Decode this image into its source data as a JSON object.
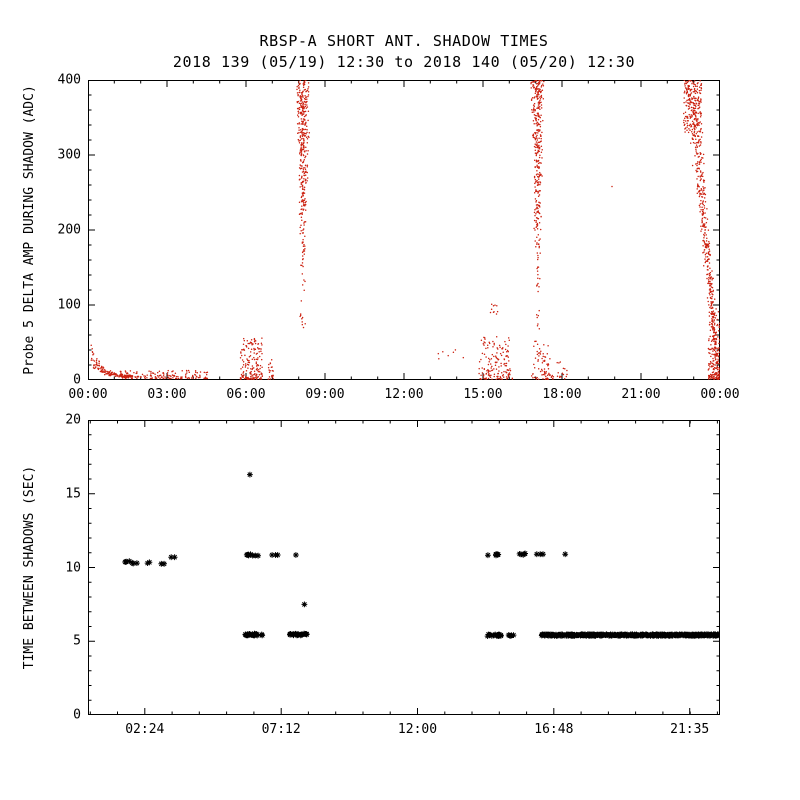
{
  "page": {
    "background": "#ffffff",
    "axis_color": "#000000"
  },
  "header": {
    "title": "RBSP-A SHORT ANT. SHADOW TIMES",
    "subtitle": "2018 139 (05/19) 12:30 to 2018 140 (05/20) 12:30"
  },
  "chart_data": [
    {
      "panel": "top",
      "type": "scatter",
      "title": "RBSP-A SHORT ANT. SHADOW TIMES",
      "subtitle": "2018 139 (05/19) 12:30 to 2018 140 (05/20) 12:30",
      "xlabel": "",
      "ylabel": "Probe 5 DELTA AMP DURING SHADOW (ADC)",
      "xlim": [
        0,
        24
      ],
      "ylim": [
        0,
        400
      ],
      "x_ticks": [
        {
          "v": 0,
          "label": "00:00"
        },
        {
          "v": 3,
          "label": "03:00"
        },
        {
          "v": 6,
          "label": "06:00"
        },
        {
          "v": 9,
          "label": "09:00"
        },
        {
          "v": 12,
          "label": "12:00"
        },
        {
          "v": 15,
          "label": "15:00"
        },
        {
          "v": 18,
          "label": "18:00"
        },
        {
          "v": 21,
          "label": "21:00"
        },
        {
          "v": 24,
          "label": "00:00"
        }
      ],
      "x_minor": 1,
      "y_ticks": [
        {
          "v": 0,
          "label": "0"
        },
        {
          "v": 100,
          "label": "100"
        },
        {
          "v": 200,
          "label": "200"
        },
        {
          "v": 300,
          "label": "300"
        },
        {
          "v": 400,
          "label": "400"
        }
      ],
      "y_minor": 20,
      "marker": "dot",
      "color": "#cc2211",
      "grid": false,
      "clusters": [
        {
          "name": "early-decay",
          "shape": "decay",
          "x": [
            0.12,
            1.7
          ],
          "base": 4,
          "amp": 36,
          "tau": 0.4,
          "n": 170
        },
        {
          "name": "early-tail",
          "shape": "low",
          "x": [
            1.2,
            4.55
          ],
          "y": [
            2,
            13
          ],
          "bias": 2.2,
          "n": 150
        },
        {
          "name": "dawn-cluster",
          "shape": "low",
          "x": [
            5.78,
            6.62
          ],
          "y": [
            1,
            56
          ],
          "bias": 1.8,
          "n": 170
        },
        {
          "name": "dawn-blip",
          "shape": "low",
          "x": [
            6.82,
            7.04
          ],
          "y": [
            1,
            28
          ],
          "bias": 1.5,
          "n": 22
        },
        {
          "name": "morning-streak-base",
          "shape": "box",
          "x": [
            8.05,
            8.25
          ],
          "y": [
            60,
            95
          ],
          "n": 9
        },
        {
          "name": "morning-streak",
          "shape": "column",
          "cx": 8.17,
          "y": [
            92,
            400
          ],
          "w": [
            0.07,
            0.3
          ],
          "pw": 0.45,
          "n": 380
        },
        {
          "name": "midday-sparse",
          "shape": "box",
          "x": [
            13.2,
            14.4
          ],
          "y": [
            24,
            42
          ],
          "n": 7
        },
        {
          "name": "afternoon-cluster",
          "shape": "low",
          "x": [
            14.85,
            16.12
          ],
          "y": [
            1,
            58
          ],
          "bias": 1.8,
          "n": 160
        },
        {
          "name": "afternoon-mid",
          "shape": "box",
          "x": [
            15.25,
            15.6
          ],
          "y": [
            86,
            102
          ],
          "n": 10
        },
        {
          "name": "evening-streak-base",
          "shape": "box",
          "x": [
            16.95,
            17.18
          ],
          "y": [
            60,
            95
          ],
          "n": 7
        },
        {
          "name": "evening-streak",
          "shape": "column",
          "cx": 17.07,
          "y": [
            90,
            400
          ],
          "w": [
            0.07,
            0.28
          ],
          "pw": 0.45,
          "n": 360
        },
        {
          "name": "evening-low",
          "shape": "low",
          "x": [
            16.85,
            17.68
          ],
          "y": [
            1,
            52
          ],
          "bias": 1.8,
          "n": 80
        },
        {
          "name": "evening-tail",
          "shape": "low",
          "x": [
            17.72,
            18.2
          ],
          "y": [
            1,
            24
          ],
          "bias": 1.5,
          "n": 16
        },
        {
          "name": "isolated-dot",
          "shape": "points",
          "pts": [
            [
              19.9,
              258
            ]
          ]
        },
        {
          "name": "night-diagonal",
          "shape": "diagonal",
          "y": [
            0,
            400
          ],
          "x0": 23.95,
          "x1": 22.9,
          "w": [
            0.07,
            0.24
          ],
          "n": 520
        },
        {
          "name": "night-top-blob",
          "shape": "box",
          "x": [
            22.62,
            23.3
          ],
          "y": [
            330,
            400
          ],
          "n": 170
        },
        {
          "name": "night-corner",
          "shape": "low",
          "x": [
            23.55,
            23.99
          ],
          "y": [
            1,
            95
          ],
          "bias": 1.6,
          "n": 140
        }
      ]
    },
    {
      "panel": "bottom",
      "type": "scatter",
      "title": "",
      "xlabel": "",
      "ylabel": "TIME BETWEEN SHADOWS (SEC)",
      "xlim": [
        0.4,
        22.65
      ],
      "ylim": [
        0,
        20
      ],
      "x_ticks": [
        {
          "v": 2.4,
          "label": "02:24"
        },
        {
          "v": 7.2,
          "label": "07:12"
        },
        {
          "v": 12,
          "label": "12:00"
        },
        {
          "v": 16.8,
          "label": "16:48"
        },
        {
          "v": 21.583,
          "label": "21:35"
        }
      ],
      "x_minor": 0.96,
      "y_ticks": [
        {
          "v": 0,
          "label": "0"
        },
        {
          "v": 5,
          "label": "5"
        },
        {
          "v": 10,
          "label": "10"
        },
        {
          "v": 15,
          "label": "15"
        },
        {
          "v": 20,
          "label": "20"
        }
      ],
      "y_minor": 1,
      "marker": "asterisk",
      "color": "#000000",
      "grid": false,
      "clusters": [
        {
          "name": "night1-gaps-10s",
          "shape": "hline",
          "x": [
            1.66,
            2.02
          ],
          "y": 10.35,
          "jy": 0.1,
          "n": 6
        },
        {
          "name": "night1-extra",
          "shape": "points",
          "pts": [
            [
              2.12,
              10.3
            ],
            [
              2.5,
              10.3
            ],
            [
              2.56,
              10.35
            ]
          ]
        },
        {
          "name": "night1-late",
          "shape": "points",
          "pts": [
            [
              2.98,
              10.25
            ],
            [
              3.08,
              10.25
            ],
            [
              3.33,
              10.7
            ],
            [
              3.45,
              10.7
            ]
          ]
        },
        {
          "name": "morning-outlier-16s",
          "shape": "points",
          "pts": [
            [
              6.1,
              16.3
            ]
          ]
        },
        {
          "name": "morning-10s-a",
          "shape": "hline",
          "x": [
            5.95,
            6.55
          ],
          "y": 10.85,
          "jy": 0.06,
          "n": 9
        },
        {
          "name": "morning-5s-a",
          "shape": "hline",
          "x": [
            5.9,
            6.55
          ],
          "y": 5.45,
          "jy": 0.06,
          "n": 26
        },
        {
          "name": "morning-10s-b",
          "shape": "points",
          "pts": [
            [
              6.88,
              10.85
            ],
            [
              7.0,
              10.85
            ],
            [
              7.08,
              10.85
            ]
          ]
        },
        {
          "name": "morning-5s-b",
          "shape": "hline",
          "x": [
            7.45,
            8.15
          ],
          "y": 5.45,
          "jy": 0.06,
          "n": 30
        },
        {
          "name": "morning-singles",
          "shape": "points",
          "pts": [
            [
              7.72,
              10.85
            ],
            [
              8.02,
              7.5
            ]
          ]
        },
        {
          "name": "afternoon-10s-a",
          "shape": "hline",
          "x": [
            14.45,
            14.95
          ],
          "y": 10.85,
          "jy": 0.05,
          "n": 7
        },
        {
          "name": "afternoon-5s-a",
          "shape": "hline",
          "x": [
            14.45,
            14.98
          ],
          "y": 5.4,
          "jy": 0.06,
          "n": 20
        },
        {
          "name": "afternoon-5s-b",
          "shape": "hline",
          "x": [
            15.18,
            15.38
          ],
          "y": 5.4,
          "jy": 0.05,
          "n": 5
        },
        {
          "name": "afternoon-10s-b",
          "shape": "hline",
          "x": [
            15.5,
            15.8
          ],
          "y": 10.9,
          "jy": 0.05,
          "n": 5
        },
        {
          "name": "afternoon-10s-c",
          "shape": "points",
          "pts": [
            [
              16.2,
              10.9
            ],
            [
              16.32,
              10.9
            ],
            [
              16.42,
              10.9
            ]
          ]
        },
        {
          "name": "evening-10s-single",
          "shape": "points",
          "pts": [
            [
              17.2,
              10.9
            ]
          ]
        },
        {
          "name": "evening-5s-band",
          "shape": "hline",
          "x": [
            16.35,
            22.65
          ],
          "y": 5.42,
          "jy": 0.05,
          "n": 520
        }
      ]
    }
  ]
}
